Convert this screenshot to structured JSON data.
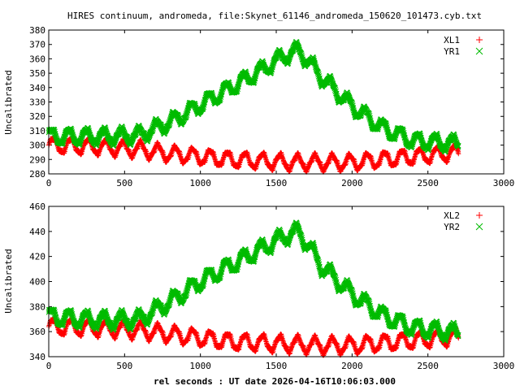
{
  "title": "HIRES continuum, andromeda, file:Skynet_61146_andromeda_150620_101473.cyb.txt",
  "xlabel": "rel seconds : UT date 2026-04-16T10:06:03.000",
  "chart_data": [
    {
      "type": "scatter",
      "ylabel": "Uncalibrated",
      "xlim": [
        0,
        3000
      ],
      "ylim": [
        280,
        380
      ],
      "xticks": [
        0,
        500,
        1000,
        1500,
        2000,
        2500,
        3000
      ],
      "yticks": [
        280,
        290,
        300,
        310,
        320,
        330,
        340,
        350,
        360,
        370,
        380
      ],
      "legend_position": "top-right",
      "series": [
        {
          "name": "XL1",
          "color": "#ff0000",
          "marker": "plus",
          "trend": {
            "x": [
              0,
              300,
              600,
              800,
              1000,
              1200,
              1400,
              1600,
              1800,
              2000,
              2200,
              2400,
              2700
            ],
            "y": [
              300,
              299,
              297,
              294,
              292,
              290,
              289,
              288,
              288,
              288,
              290,
              292,
              295
            ]
          },
          "amplitude": 5,
          "x_range": [
            0,
            2700
          ]
        },
        {
          "name": "YR1",
          "color": "#00bb00",
          "marker": "cross",
          "trend": {
            "x": [
              0,
              200,
              400,
              600,
              800,
              1000,
              1200,
              1400,
              1550,
              1650,
              1800,
              2000,
              2200,
              2400,
              2700
            ],
            "y": [
              306,
              306,
              306,
              307,
              316,
              328,
              340,
              352,
              362,
              366,
              347,
              327,
              312,
              303,
              301
            ],
            "extra": []
          },
          "amplitude": 5,
          "x_range": [
            0,
            2700
          ]
        }
      ]
    },
    {
      "type": "scatter",
      "ylabel": "Uncalibrated",
      "xlim": [
        0,
        3000
      ],
      "ylim": [
        340,
        460
      ],
      "xticks": [
        0,
        500,
        1000,
        1500,
        2000,
        2500,
        3000
      ],
      "yticks": [
        340,
        360,
        380,
        400,
        420,
        440,
        460
      ],
      "legend_position": "top-right",
      "series": [
        {
          "name": "XL2",
          "color": "#ff0000",
          "marker": "plus",
          "trend": {
            "x": [
              0,
              300,
              600,
              800,
              1000,
              1200,
              1400,
              1600,
              1800,
              2000,
              2200,
              2400,
              2700
            ],
            "y": [
              364,
              363,
              361,
              358,
              355,
              352,
              351,
              350,
              349,
              349,
              351,
              353,
              356
            ]
          },
          "amplitude": 6,
          "x_range": [
            0,
            2700
          ]
        },
        {
          "name": "YR2",
          "color": "#00bb00",
          "marker": "cross",
          "trend": {
            "x": [
              0,
              200,
              400,
              600,
              800,
              1000,
              1200,
              1400,
              1550,
              1650,
              1800,
              2000,
              2200,
              2400,
              2700
            ],
            "y": [
              372,
              370,
              369,
              370,
              384,
              400,
              413,
              426,
              436,
              440,
              412,
              390,
              373,
              363,
              359
            ]
          },
          "amplitude": 6,
          "x_range": [
            0,
            2700
          ]
        }
      ]
    }
  ]
}
